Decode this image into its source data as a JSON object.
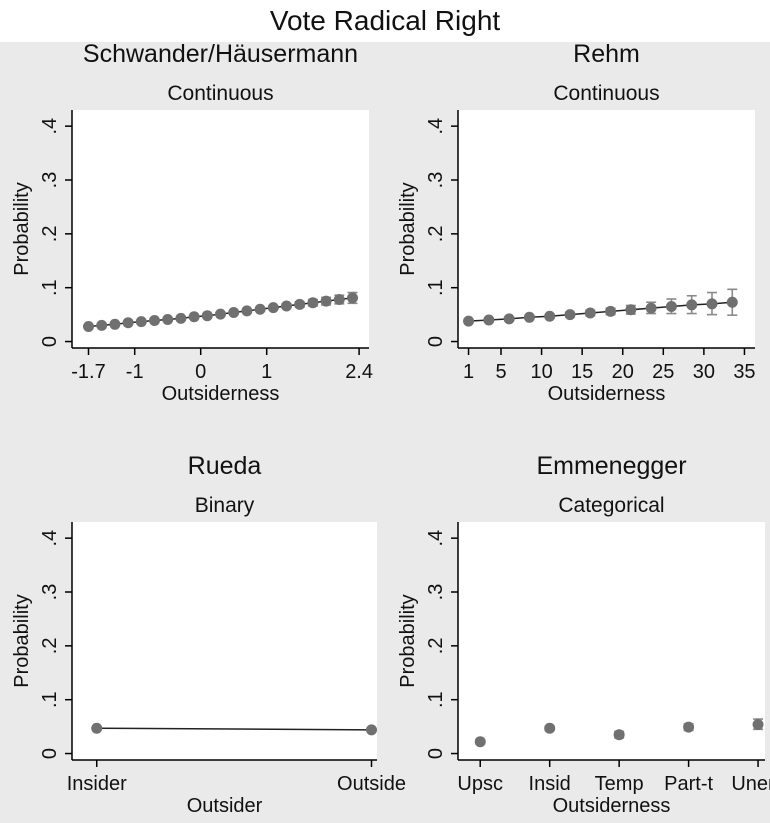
{
  "figure": {
    "title": "Vote Radical Right"
  },
  "chart_data": [
    {
      "type": "scatter",
      "title": "Schwander/Häusermann",
      "subtitle": "Continuous",
      "xlabel": "Outsiderness",
      "ylabel": "Probability",
      "xlim": [
        -1.95,
        2.55
      ],
      "ylim": [
        -0.012,
        0.43
      ],
      "xticks": [
        -1.7,
        -1,
        0,
        1,
        2.4
      ],
      "xtick_labels": [
        "-1.7",
        "-1",
        "0",
        "1",
        "2.4"
      ],
      "yticks": [
        0,
        0.1,
        0.2,
        0.3,
        0.4
      ],
      "ytick_labels": [
        "0",
        ".1",
        ".2",
        ".3",
        ".4"
      ],
      "connect_line": true,
      "points": [
        {
          "x": -1.7,
          "y": 0.028,
          "lo": 0.026,
          "hi": 0.03
        },
        {
          "x": -1.5,
          "y": 0.03,
          "lo": 0.028,
          "hi": 0.032
        },
        {
          "x": -1.3,
          "y": 0.032,
          "lo": 0.03,
          "hi": 0.034
        },
        {
          "x": -1.1,
          "y": 0.035,
          "lo": 0.033,
          "hi": 0.037
        },
        {
          "x": -0.9,
          "y": 0.037,
          "lo": 0.035,
          "hi": 0.039
        },
        {
          "x": -0.7,
          "y": 0.039,
          "lo": 0.037,
          "hi": 0.041
        },
        {
          "x": -0.5,
          "y": 0.041,
          "lo": 0.039,
          "hi": 0.043
        },
        {
          "x": -0.3,
          "y": 0.043,
          "lo": 0.041,
          "hi": 0.045
        },
        {
          "x": -0.1,
          "y": 0.046,
          "lo": 0.044,
          "hi": 0.048
        },
        {
          "x": 0.1,
          "y": 0.048,
          "lo": 0.046,
          "hi": 0.05
        },
        {
          "x": 0.3,
          "y": 0.051,
          "lo": 0.049,
          "hi": 0.053
        },
        {
          "x": 0.5,
          "y": 0.054,
          "lo": 0.052,
          "hi": 0.056
        },
        {
          "x": 0.7,
          "y": 0.057,
          "lo": 0.055,
          "hi": 0.059
        },
        {
          "x": 0.9,
          "y": 0.06,
          "lo": 0.058,
          "hi": 0.062
        },
        {
          "x": 1.1,
          "y": 0.063,
          "lo": 0.06,
          "hi": 0.066
        },
        {
          "x": 1.3,
          "y": 0.066,
          "lo": 0.062,
          "hi": 0.07
        },
        {
          "x": 1.5,
          "y": 0.069,
          "lo": 0.064,
          "hi": 0.074
        },
        {
          "x": 1.7,
          "y": 0.072,
          "lo": 0.066,
          "hi": 0.078
        },
        {
          "x": 1.9,
          "y": 0.075,
          "lo": 0.068,
          "hi": 0.082
        },
        {
          "x": 2.1,
          "y": 0.078,
          "lo": 0.07,
          "hi": 0.086
        },
        {
          "x": 2.3,
          "y": 0.081,
          "lo": 0.071,
          "hi": 0.091
        }
      ]
    },
    {
      "type": "scatter",
      "title": "Rehm",
      "subtitle": "Continuous",
      "xlabel": "Outsiderness",
      "ylabel": "Probability",
      "xlim": [
        -0.3,
        36.3
      ],
      "ylim": [
        -0.012,
        0.43
      ],
      "xticks": [
        1,
        5,
        10,
        15,
        20,
        25,
        30,
        35
      ],
      "xtick_labels": [
        "1",
        "5",
        "10",
        "15",
        "20",
        "25",
        "30",
        "35"
      ],
      "yticks": [
        0,
        0.1,
        0.2,
        0.3,
        0.4
      ],
      "ytick_labels": [
        "0",
        ".1",
        ".2",
        ".3",
        ".4"
      ],
      "connect_line": true,
      "points": [
        {
          "x": 1,
          "y": 0.038,
          "lo": 0.035,
          "hi": 0.041
        },
        {
          "x": 3.5,
          "y": 0.04,
          "lo": 0.037,
          "hi": 0.043
        },
        {
          "x": 6,
          "y": 0.042,
          "lo": 0.039,
          "hi": 0.045
        },
        {
          "x": 8.5,
          "y": 0.045,
          "lo": 0.042,
          "hi": 0.048
        },
        {
          "x": 11,
          "y": 0.047,
          "lo": 0.044,
          "hi": 0.05
        },
        {
          "x": 13.5,
          "y": 0.05,
          "lo": 0.046,
          "hi": 0.054
        },
        {
          "x": 16,
          "y": 0.053,
          "lo": 0.048,
          "hi": 0.058
        },
        {
          "x": 18.5,
          "y": 0.056,
          "lo": 0.05,
          "hi": 0.062
        },
        {
          "x": 21,
          "y": 0.059,
          "lo": 0.051,
          "hi": 0.067
        },
        {
          "x": 23.5,
          "y": 0.062,
          "lo": 0.052,
          "hi": 0.073
        },
        {
          "x": 26,
          "y": 0.065,
          "lo": 0.052,
          "hi": 0.079
        },
        {
          "x": 28.5,
          "y": 0.068,
          "lo": 0.052,
          "hi": 0.085
        },
        {
          "x": 31,
          "y": 0.07,
          "lo": 0.05,
          "hi": 0.091
        },
        {
          "x": 33.5,
          "y": 0.073,
          "lo": 0.049,
          "hi": 0.097
        }
      ]
    },
    {
      "type": "line",
      "title": "Rueda",
      "subtitle": "Binary",
      "xlabel": "Outsider",
      "ylabel": "Probability",
      "xlim": [
        -0.09,
        1.02
      ],
      "ylim": [
        -0.012,
        0.43
      ],
      "xticks": [
        0,
        1
      ],
      "xtick_labels": [
        "Insider",
        "Outside"
      ],
      "yticks": [
        0,
        0.1,
        0.2,
        0.3,
        0.4
      ],
      "ytick_labels": [
        "0",
        ".1",
        ".2",
        ".3",
        ".4"
      ],
      "connect_line": true,
      "points": [
        {
          "x": 0,
          "y": 0.047,
          "lo": 0.045,
          "hi": 0.049
        },
        {
          "x": 1,
          "y": 0.044,
          "lo": 0.041,
          "hi": 0.047
        }
      ]
    },
    {
      "type": "scatter",
      "title": "Emmenegger",
      "subtitle": "Categorical",
      "xlabel": "Outsiderness",
      "ylabel": "Probability",
      "xlim": [
        -0.32,
        4.1
      ],
      "ylim": [
        -0.012,
        0.43
      ],
      "xticks": [
        0,
        1,
        2,
        3,
        4
      ],
      "xtick_labels": [
        "Upsc",
        "Insid",
        "Temp",
        "Part-t",
        "Unem"
      ],
      "yticks": [
        0,
        0.1,
        0.2,
        0.3,
        0.4
      ],
      "ytick_labels": [
        "0",
        ".1",
        ".2",
        ".3",
        ".4"
      ],
      "connect_line": false,
      "points": [
        {
          "x": 0,
          "y": 0.022,
          "lo": 0.018,
          "hi": 0.026
        },
        {
          "x": 1,
          "y": 0.047,
          "lo": 0.043,
          "hi": 0.051
        },
        {
          "x": 2,
          "y": 0.035,
          "lo": 0.029,
          "hi": 0.041
        },
        {
          "x": 3,
          "y": 0.049,
          "lo": 0.043,
          "hi": 0.055
        },
        {
          "x": 4,
          "y": 0.054,
          "lo": 0.045,
          "hi": 0.064
        }
      ]
    }
  ],
  "colors": {
    "panel_bg": "#eaeaea",
    "plot_bg": "#ffffff",
    "marker": "#707070",
    "errorbar": "#8a8a8a",
    "line": "#222222"
  }
}
